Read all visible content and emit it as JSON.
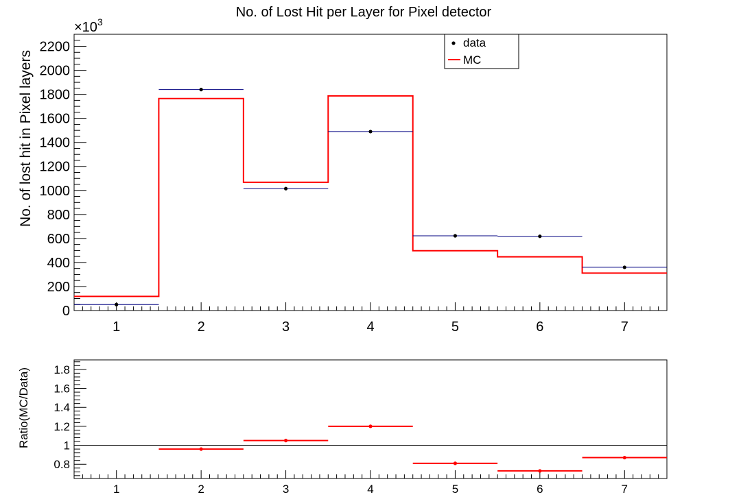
{
  "chart_data": [
    {
      "type": "step-histogram",
      "title": "No. of Lost Hit per Layer for Pixel detector",
      "ylabel": "No. of lost hit in Pixel layers",
      "y_multiplier": "×10",
      "y_multiplier_exp": "3",
      "xlim": [
        0.5,
        7.5
      ],
      "ylim": [
        0,
        2300
      ],
      "x_ticks": [
        1,
        2,
        3,
        4,
        5,
        6,
        7
      ],
      "y_ticks": [
        0,
        200,
        400,
        600,
        800,
        1000,
        1200,
        1400,
        1600,
        1800,
        2000,
        2200
      ],
      "legend_position": "top-right",
      "series": [
        {
          "name": "data",
          "style": "points",
          "color": "#000000",
          "bar_color": "#000080",
          "x": [
            1,
            2,
            3,
            4,
            5,
            6,
            7
          ],
          "values": [
            50,
            1840,
            1015,
            1490,
            622,
            618,
            360
          ]
        },
        {
          "name": "MC",
          "style": "step",
          "color": "#ff0000",
          "x": [
            1,
            2,
            3,
            4,
            5,
            6,
            7
          ],
          "values": [
            118,
            1765,
            1068,
            1787,
            498,
            447,
            312
          ]
        }
      ]
    },
    {
      "type": "scatter",
      "ylabel": "Ratio(MC/Data)",
      "xlim": [
        0.5,
        7.5
      ],
      "ylim": [
        0.65,
        1.9
      ],
      "x_ticks": [
        1,
        2,
        3,
        4,
        5,
        6,
        7
      ],
      "y_ticks": [
        0.8,
        1,
        1.2,
        1.4,
        1.6,
        1.8
      ],
      "reference_line": 1,
      "series": [
        {
          "name": "ratio",
          "color": "#ff0000",
          "x": [
            2,
            3,
            4,
            5,
            6,
            7
          ],
          "values": [
            0.96,
            1.05,
            1.2,
            0.81,
            0.73,
            0.87
          ]
        }
      ]
    }
  ]
}
